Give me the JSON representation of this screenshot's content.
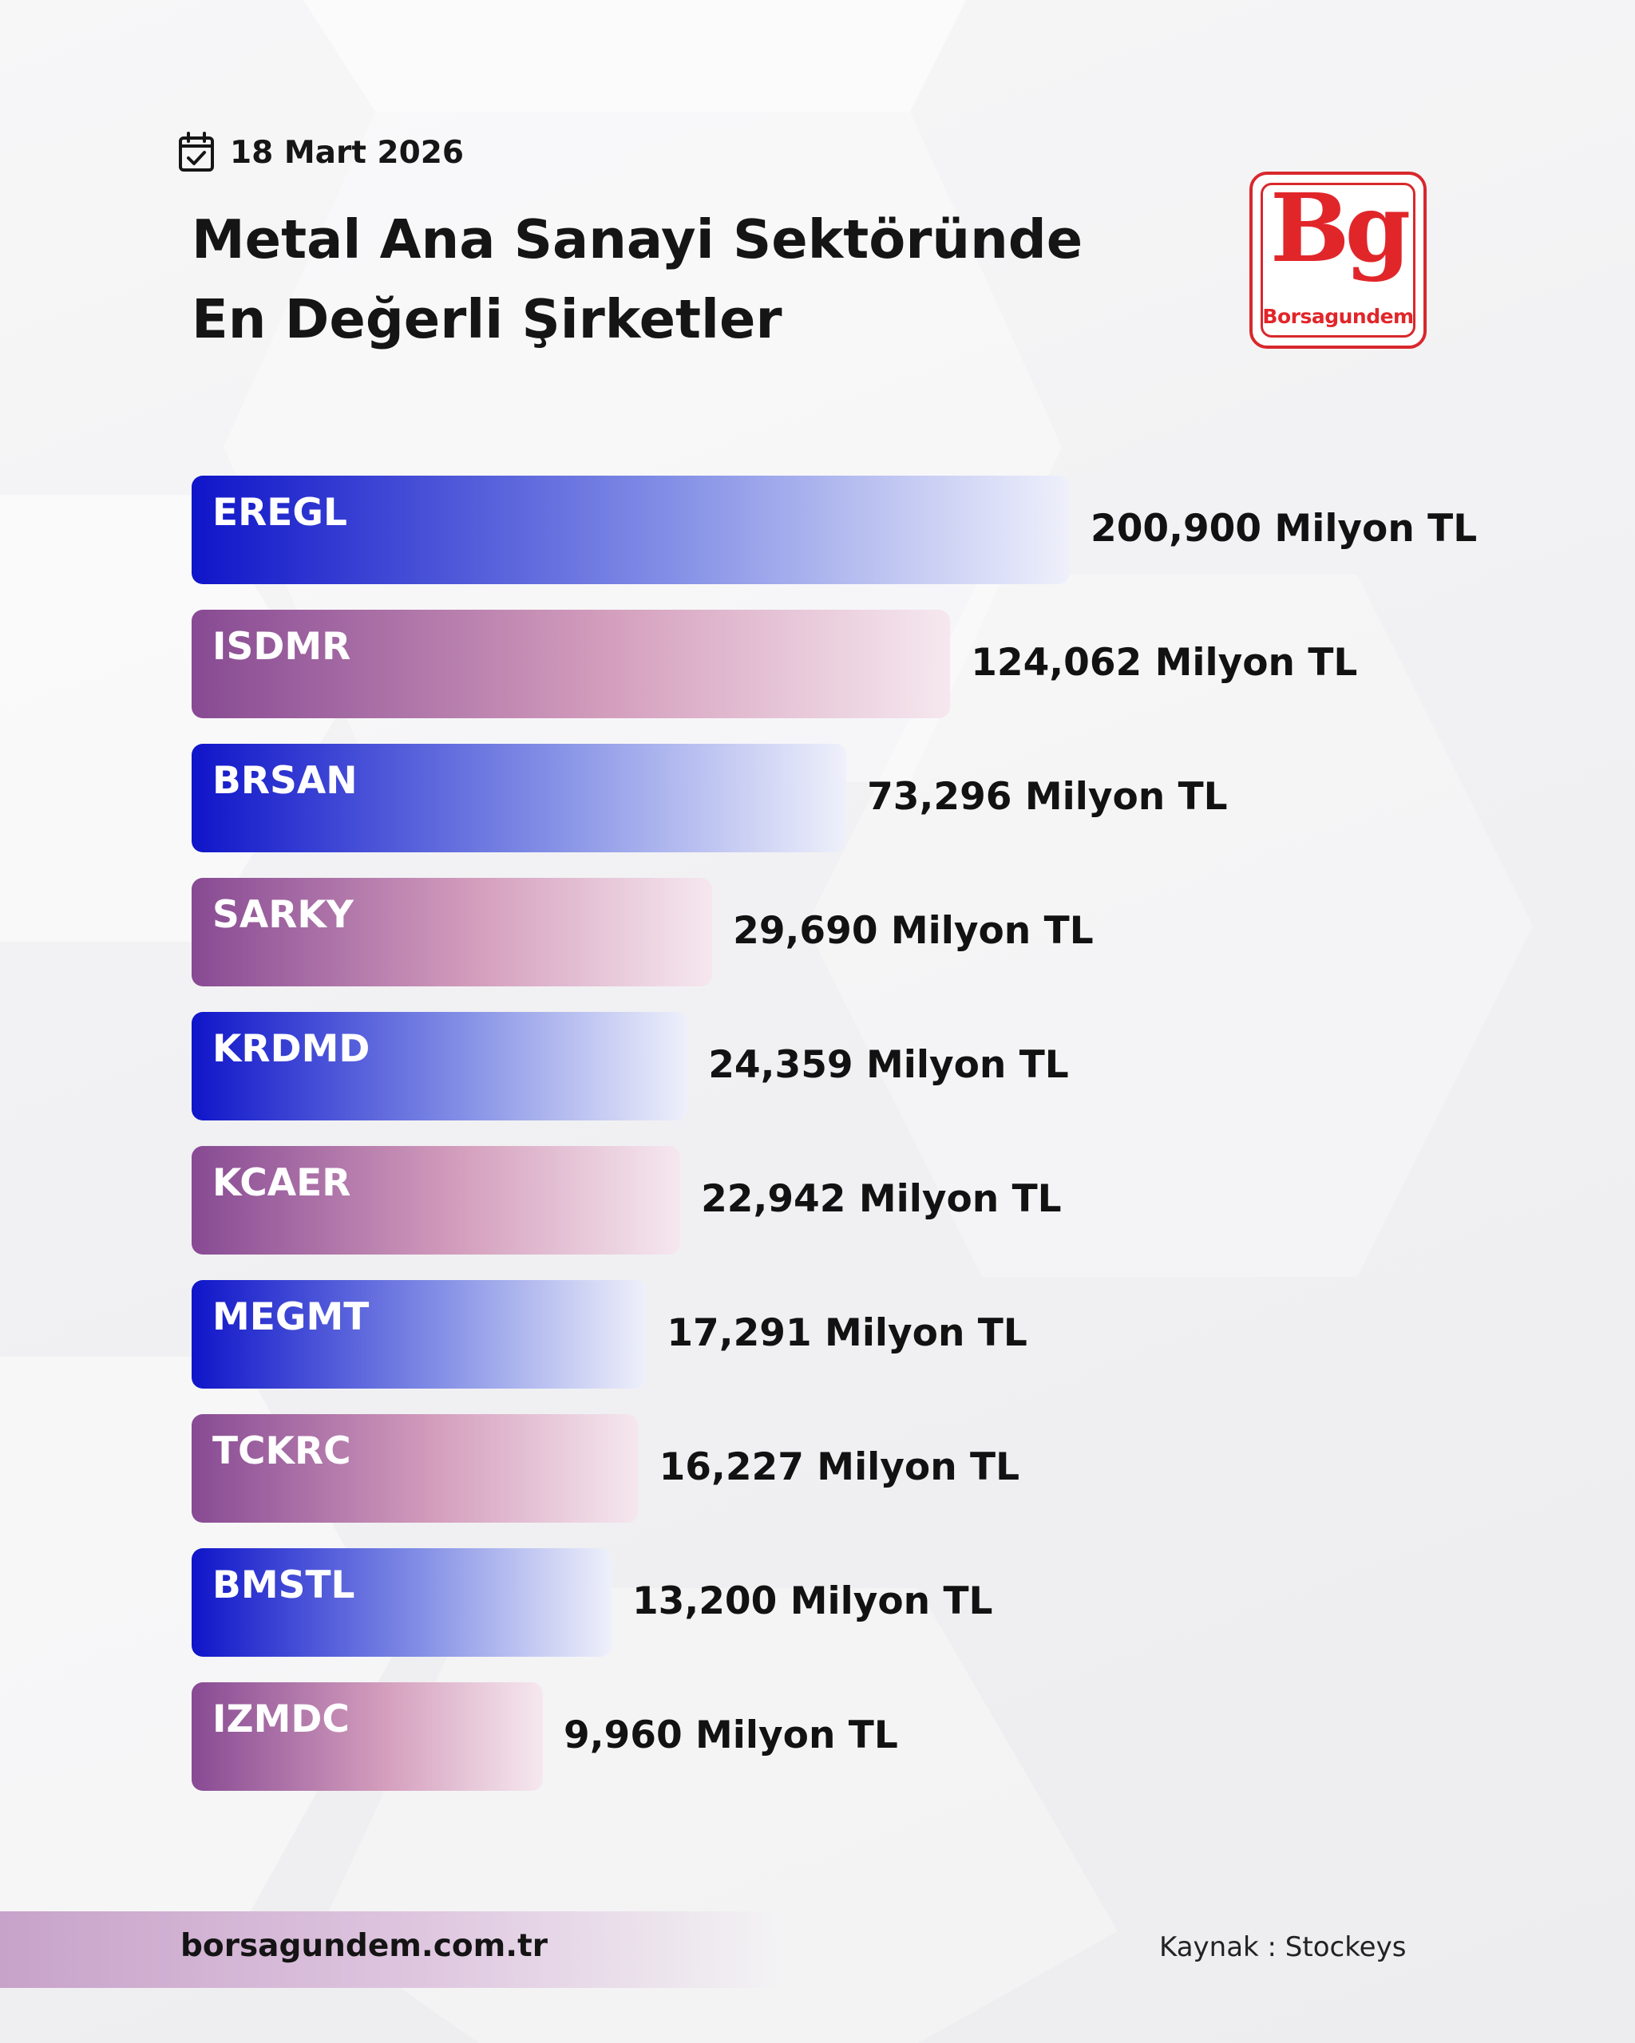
{
  "header": {
    "date": "18 Mart 2026",
    "title_line1": "Metal Ana Sanayi Sektöründe",
    "title_line2": "En Değerli Şirketler"
  },
  "logo": {
    "mark": "Bg",
    "wordmark": "Borsagundem",
    "color": "#e1262a"
  },
  "chart_data": {
    "type": "bar",
    "orientation": "horizontal",
    "title": "",
    "xlabel": "",
    "ylabel": "",
    "unit": "Milyon TL",
    "categories": [
      "EREGL",
      "ISDMR",
      "BRSAN",
      "SARKY",
      "KRDMD",
      "KCAER",
      "MEGMT",
      "TCKRC",
      "BMSTL",
      "IZMDC"
    ],
    "values": [
      200900,
      124062,
      73296,
      29690,
      24359,
      22942,
      17291,
      16227,
      13200,
      9960
    ],
    "value_labels": [
      "200,900 Milyon TL",
      "124,062 Milyon TL",
      "73,296 Milyon TL",
      "29,690 Milyon TL",
      "24,359 Milyon TL",
      "22,942 Milyon TL",
      "17,291 Milyon TL",
      "16,227 Milyon TL",
      "13,200 Milyon TL",
      "9,960 Milyon TL"
    ],
    "bar_colors": [
      "#0f15c9",
      "#874a93"
    ],
    "grid": false,
    "legend": "none"
  },
  "footer": {
    "website": "borsagundem.com.tr",
    "source": "Kaynak : Stockeys"
  }
}
